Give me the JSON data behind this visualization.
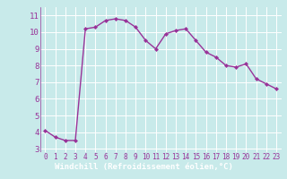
{
  "x": [
    0,
    1,
    2,
    3,
    4,
    5,
    6,
    7,
    8,
    9,
    10,
    11,
    12,
    13,
    14,
    15,
    16,
    17,
    18,
    19,
    20,
    21,
    22,
    23
  ],
  "y": [
    4.1,
    3.7,
    3.5,
    3.5,
    10.2,
    10.3,
    10.7,
    10.8,
    10.7,
    10.3,
    9.5,
    9.0,
    9.9,
    10.1,
    10.2,
    9.5,
    8.8,
    8.5,
    8.0,
    7.9,
    8.1,
    7.2,
    6.9,
    6.6
  ],
  "line_color": "#993399",
  "marker": "D",
  "marker_size": 2.0,
  "bg_color": "#c8eaea",
  "grid_color": "#ffffff",
  "xlabel": "Windchill (Refroidissement éolien,°C)",
  "xlabel_color": "#ffffff",
  "xlabel_bg": "#993399",
  "ylabel_ticks": [
    3,
    4,
    5,
    6,
    7,
    8,
    9,
    10,
    11
  ],
  "xticks": [
    0,
    1,
    2,
    3,
    4,
    5,
    6,
    7,
    8,
    9,
    10,
    11,
    12,
    13,
    14,
    15,
    16,
    17,
    18,
    19,
    20,
    21,
    22,
    23
  ],
  "ylim": [
    2.8,
    11.5
  ],
  "xlim": [
    -0.5,
    23.5
  ],
  "line_width": 1.0,
  "tick_label_color": "#993399",
  "tick_label_size": 5.5,
  "xlabel_fontsize": 6.5,
  "ytick_label_size": 6.5
}
